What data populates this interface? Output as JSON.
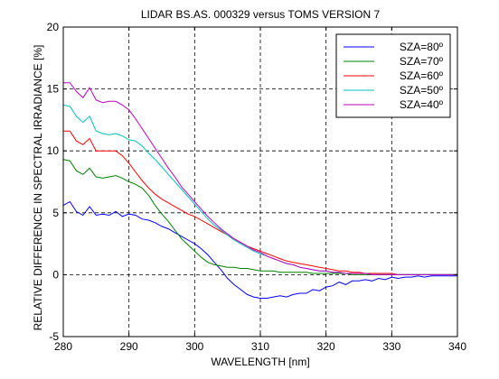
{
  "chart_data": {
    "type": "line",
    "title": "LIDAR BS.AS. 000329 versus TOMS VERSION 7",
    "xlabel": "WAVELENGTH [nm]",
    "ylabel": "RELATIVE DIFFERENCE IN SPECTRAL IRRADIANCE [%]",
    "xlim": [
      280,
      340
    ],
    "ylim": [
      -5,
      20
    ],
    "xticks": [
      "280",
      "290",
      "300",
      "310",
      "320",
      "330",
      "340"
    ],
    "yticks": [
      "-5",
      "0",
      "5",
      "10",
      "15",
      "20"
    ],
    "grid": true,
    "legend_position": "top-right",
    "series": [
      {
        "name": "SZA=80º",
        "color": "#0000ff",
        "x": [
          280,
          281,
          282,
          283,
          284,
          285,
          286,
          287,
          288,
          289,
          290,
          291,
          292,
          293,
          294,
          295,
          296,
          297,
          298,
          299,
          300,
          301,
          302,
          303,
          304,
          305,
          306,
          307,
          308,
          309,
          310,
          311,
          312,
          313,
          314,
          315,
          316,
          317,
          318,
          319,
          320,
          321,
          322,
          323,
          324,
          325,
          326,
          327,
          328,
          329,
          330,
          331,
          332,
          333,
          334,
          335,
          336,
          337,
          338,
          339,
          340
        ],
        "values": [
          5.6,
          5.9,
          5.1,
          4.8,
          5.5,
          4.8,
          4.9,
          4.8,
          5.1,
          4.7,
          4.9,
          4.8,
          4.5,
          4.4,
          4.2,
          3.9,
          3.7,
          3.4,
          3.1,
          2.8,
          2.5,
          2.1,
          1.6,
          1.0,
          0.4,
          -0.3,
          -0.8,
          -1.2,
          -1.6,
          -1.8,
          -1.9,
          -1.9,
          -1.8,
          -1.7,
          -1.8,
          -1.6,
          -1.5,
          -1.5,
          -1.2,
          -1.3,
          -1.0,
          -0.9,
          -0.6,
          -0.8,
          -0.5,
          -0.5,
          -0.4,
          -0.5,
          -0.3,
          -0.4,
          -0.2,
          -0.3,
          -0.2,
          -0.2,
          -0.1,
          -0.2,
          -0.1,
          -0.1,
          -0.1,
          -0.1,
          -0.1
        ]
      },
      {
        "name": "SZA=70º",
        "color": "#008000",
        "x": [
          280,
          281,
          282,
          283,
          284,
          285,
          286,
          287,
          288,
          289,
          290,
          291,
          292,
          293,
          294,
          295,
          296,
          297,
          298,
          299,
          300,
          301,
          302,
          303,
          304,
          305,
          306,
          307,
          308,
          309,
          310,
          311,
          312,
          313,
          314,
          315,
          316,
          317,
          318,
          319,
          320,
          321,
          322,
          323,
          324,
          325,
          326,
          327,
          328,
          329,
          330,
          331,
          332,
          333,
          334,
          335,
          336,
          337,
          338,
          339,
          340
        ],
        "values": [
          9.3,
          9.2,
          8.4,
          8.1,
          8.6,
          7.9,
          7.8,
          7.9,
          8.0,
          7.8,
          7.5,
          7.3,
          7.0,
          6.4,
          5.6,
          4.9,
          4.3,
          3.6,
          2.9,
          2.4,
          1.9,
          1.4,
          1.0,
          0.8,
          0.7,
          0.6,
          0.6,
          0.5,
          0.5,
          0.4,
          0.3,
          0.3,
          0.3,
          0.2,
          0.2,
          0.2,
          0.2,
          0.2,
          0.1,
          0.1,
          0.1,
          0.1,
          0.1,
          0.1,
          0.0,
          0.0,
          0.0,
          0.0,
          0.0,
          0.0,
          0.0,
          0.0,
          0.0,
          0.0,
          0.0,
          0.0,
          0.0,
          0.0,
          0.0,
          0.0,
          0.0
        ]
      },
      {
        "name": "SZA=60º",
        "color": "#ff0000",
        "x": [
          280,
          281,
          282,
          283,
          284,
          285,
          286,
          287,
          288,
          289,
          290,
          291,
          292,
          293,
          294,
          295,
          296,
          297,
          298,
          299,
          300,
          301,
          302,
          303,
          304,
          305,
          306,
          307,
          308,
          309,
          310,
          311,
          312,
          313,
          314,
          315,
          316,
          317,
          318,
          319,
          320,
          321,
          322,
          323,
          324,
          325,
          326,
          327,
          328,
          329,
          330,
          331,
          332,
          333,
          334,
          335,
          336,
          337,
          338,
          339,
          340
        ],
        "values": [
          11.6,
          11.6,
          10.8,
          10.5,
          11.0,
          10.0,
          10.0,
          10.0,
          10.0,
          9.6,
          9.0,
          8.3,
          7.6,
          7.0,
          6.5,
          6.1,
          5.8,
          5.5,
          5.2,
          4.9,
          4.7,
          4.4,
          4.1,
          3.8,
          3.5,
          3.2,
          2.9,
          2.6,
          2.3,
          2.1,
          1.9,
          1.7,
          1.5,
          1.3,
          1.1,
          1.0,
          0.9,
          0.8,
          0.7,
          0.6,
          0.5,
          0.4,
          0.3,
          0.3,
          0.2,
          0.2,
          0.1,
          0.1,
          0.1,
          0.1,
          0.1,
          0.0,
          0.0,
          0.0,
          0.0,
          0.0,
          0.0,
          0.0,
          0.0,
          0.0,
          0.0
        ]
      },
      {
        "name": "SZA=50º",
        "color": "#00bfbf",
        "x": [
          280,
          281,
          282,
          283,
          284,
          285,
          286,
          287,
          288,
          289,
          290,
          291,
          292,
          293,
          294,
          295,
          296,
          297,
          298,
          299,
          300,
          301,
          302,
          303,
          304,
          305,
          306,
          307,
          308,
          309,
          310,
          311,
          312,
          313,
          314,
          315,
          316,
          317,
          318,
          319,
          320,
          321,
          322,
          323,
          324,
          325,
          326,
          327,
          328,
          329,
          330,
          331,
          332,
          333,
          334,
          335,
          336,
          337,
          338,
          339,
          340
        ],
        "values": [
          13.7,
          13.6,
          12.8,
          12.3,
          12.8,
          11.6,
          11.4,
          11.3,
          11.4,
          11.2,
          10.9,
          10.8,
          10.4,
          9.8,
          9.3,
          8.7,
          8.1,
          7.5,
          6.9,
          6.3,
          5.7,
          5.1,
          4.5,
          4.0,
          3.6,
          3.2,
          2.8,
          2.5,
          2.2,
          1.9,
          1.7,
          1.5,
          1.3,
          1.1,
          0.9,
          0.8,
          0.6,
          0.5,
          0.4,
          0.3,
          0.3,
          0.2,
          0.2,
          0.1,
          0.1,
          0.1,
          0.1,
          0.0,
          0.0,
          0.0,
          0.0,
          0.0,
          0.0,
          0.0,
          0.0,
          0.0,
          0.0,
          0.0,
          0.0,
          0.0,
          0.0
        ]
      },
      {
        "name": "SZA=40º",
        "color": "#bf00bf",
        "x": [
          280,
          281,
          282,
          283,
          284,
          285,
          286,
          287,
          288,
          289,
          290,
          291,
          292,
          293,
          294,
          295,
          296,
          297,
          298,
          299,
          300,
          301,
          302,
          303,
          304,
          305,
          306,
          307,
          308,
          309,
          310,
          311,
          312,
          313,
          314,
          315,
          316,
          317,
          318,
          319,
          320,
          321,
          322,
          323,
          324,
          325,
          326,
          327,
          328,
          329,
          330,
          331,
          332,
          333,
          334,
          335,
          336,
          337,
          338,
          339,
          340
        ],
        "values": [
          15.5,
          15.5,
          14.8,
          14.3,
          15.1,
          14.1,
          13.9,
          14.0,
          14.0,
          13.7,
          13.3,
          12.6,
          11.8,
          11.0,
          10.2,
          9.4,
          8.6,
          7.9,
          7.1,
          6.5,
          5.9,
          5.3,
          4.7,
          4.2,
          3.7,
          3.3,
          2.9,
          2.6,
          2.3,
          2.0,
          1.8,
          1.5,
          1.3,
          1.1,
          0.9,
          0.8,
          0.6,
          0.5,
          0.4,
          0.3,
          0.3,
          0.2,
          0.2,
          0.1,
          0.1,
          0.1,
          0.1,
          0.0,
          0.0,
          0.0,
          0.0,
          0.0,
          0.0,
          0.0,
          0.0,
          0.0,
          0.0,
          0.0,
          0.0,
          0.0,
          0.0
        ]
      }
    ]
  }
}
